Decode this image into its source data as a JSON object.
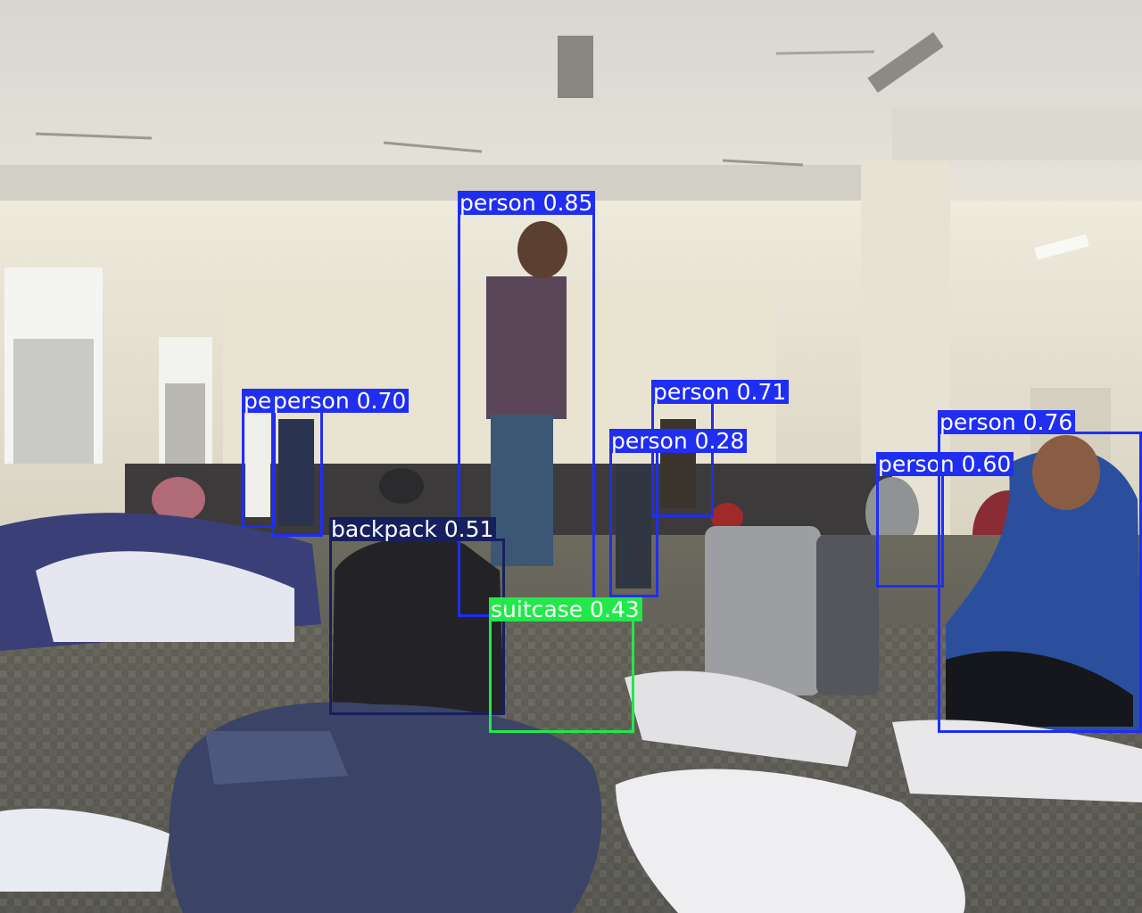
{
  "detections": [
    {
      "label": "person 0.85"
    },
    {
      "label": "pe"
    },
    {
      "label": "person 0.70"
    },
    {
      "label": "person 0.71"
    },
    {
      "label": "person 0.28"
    },
    {
      "label": "person 0.60"
    },
    {
      "label": "person 0.76"
    },
    {
      "label": "backpack 0.51"
    },
    {
      "label": "suitcase 0.43"
    }
  ],
  "colors": {
    "person_box": "#1f2ef0",
    "backpack_box": "#17205e",
    "suitcase_box": "#22e84a",
    "label_text": "#ffffff"
  }
}
